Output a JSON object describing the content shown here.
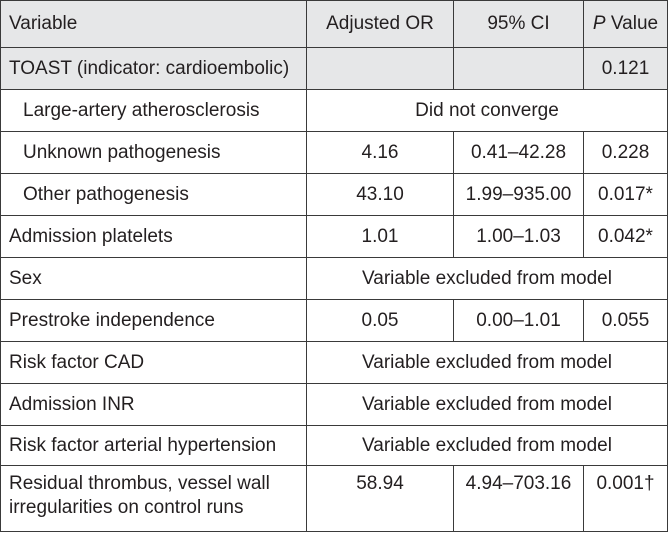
{
  "table": {
    "headers": {
      "variable": "Variable",
      "adjusted_or": "Adjusted OR",
      "ci": "95% CI",
      "p_prefix": "P",
      "p_suffix": " Value"
    },
    "rows": [
      {
        "variable": "TOAST (indicator: cardioembolic)",
        "or": "",
        "ci": "",
        "p": "0.121"
      },
      {
        "variable": "Large-artery atherosclerosis",
        "merged": "Did not converge"
      },
      {
        "variable": "Unknown pathogenesis",
        "or": "4.16",
        "ci": "0.41–42.28",
        "p": "0.228"
      },
      {
        "variable": "Other pathogenesis",
        "or": "43.10",
        "ci": "1.99–935.00",
        "p": "0.017*"
      },
      {
        "variable": "Admission platelets",
        "or": "1.01",
        "ci": "1.00–1.03",
        "p": "0.042*"
      },
      {
        "variable": "Sex",
        "merged": "Variable excluded from model"
      },
      {
        "variable": "Prestroke independence",
        "or": "0.05",
        "ci": "0.00–1.01",
        "p": "0.055"
      },
      {
        "variable": "Risk factor CAD",
        "merged": "Variable excluded from model"
      },
      {
        "variable": "Admission INR",
        "merged": "Variable excluded from model"
      },
      {
        "variable": "Risk factor arterial hypertension",
        "merged": "Variable excluded from model"
      },
      {
        "variable": "Residual thrombus, vessel wall irregularities on control runs",
        "or": "58.94",
        "ci": "4.94–703.16",
        "p": "0.001†"
      }
    ]
  },
  "colors": {
    "header_bg": "#e6e7e8",
    "border": "#3a3a3a",
    "text": "#231f20"
  }
}
